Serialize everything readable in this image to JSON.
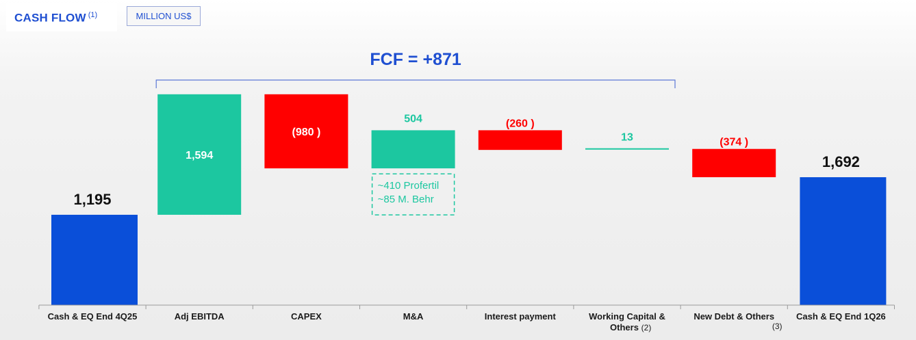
{
  "header": {
    "title": "CASH FLOW",
    "title_note": "(1)",
    "unit": "MILLION US$"
  },
  "fcf_label": "FCF = +871",
  "callout": {
    "lines": [
      "~410 Profertil",
      "~85 M. Behr"
    ]
  },
  "colors": {
    "total": "#0a4fd9",
    "increase": "#1cc7a0",
    "decrease": "#ff0000",
    "accent": "#1f4fd1"
  },
  "chart_data": {
    "type": "bar",
    "subtype": "waterfall",
    "categories": [
      "Cash & EQ End 4Q25",
      "Adj EBITDA",
      "CAPEX",
      "M&A",
      "Interest payment",
      "Working Capital & Others",
      "New Debt & Others",
      "Cash & EQ End 1Q26"
    ],
    "category_notes": [
      "",
      "",
      "",
      "",
      "",
      "(2)",
      "(3)",
      ""
    ],
    "values": [
      1195,
      1594,
      -980,
      504,
      -260,
      13,
      -374,
      1692
    ],
    "labels": [
      "1,195",
      "1,594",
      "(980 )",
      "504",
      "(260 )",
      "13",
      "(374 )",
      "1,692"
    ],
    "kinds": [
      "total",
      "increase",
      "decrease",
      "increase",
      "decrease",
      "increase",
      "decrease",
      "total"
    ],
    "xlabel": "",
    "ylabel": ""
  }
}
